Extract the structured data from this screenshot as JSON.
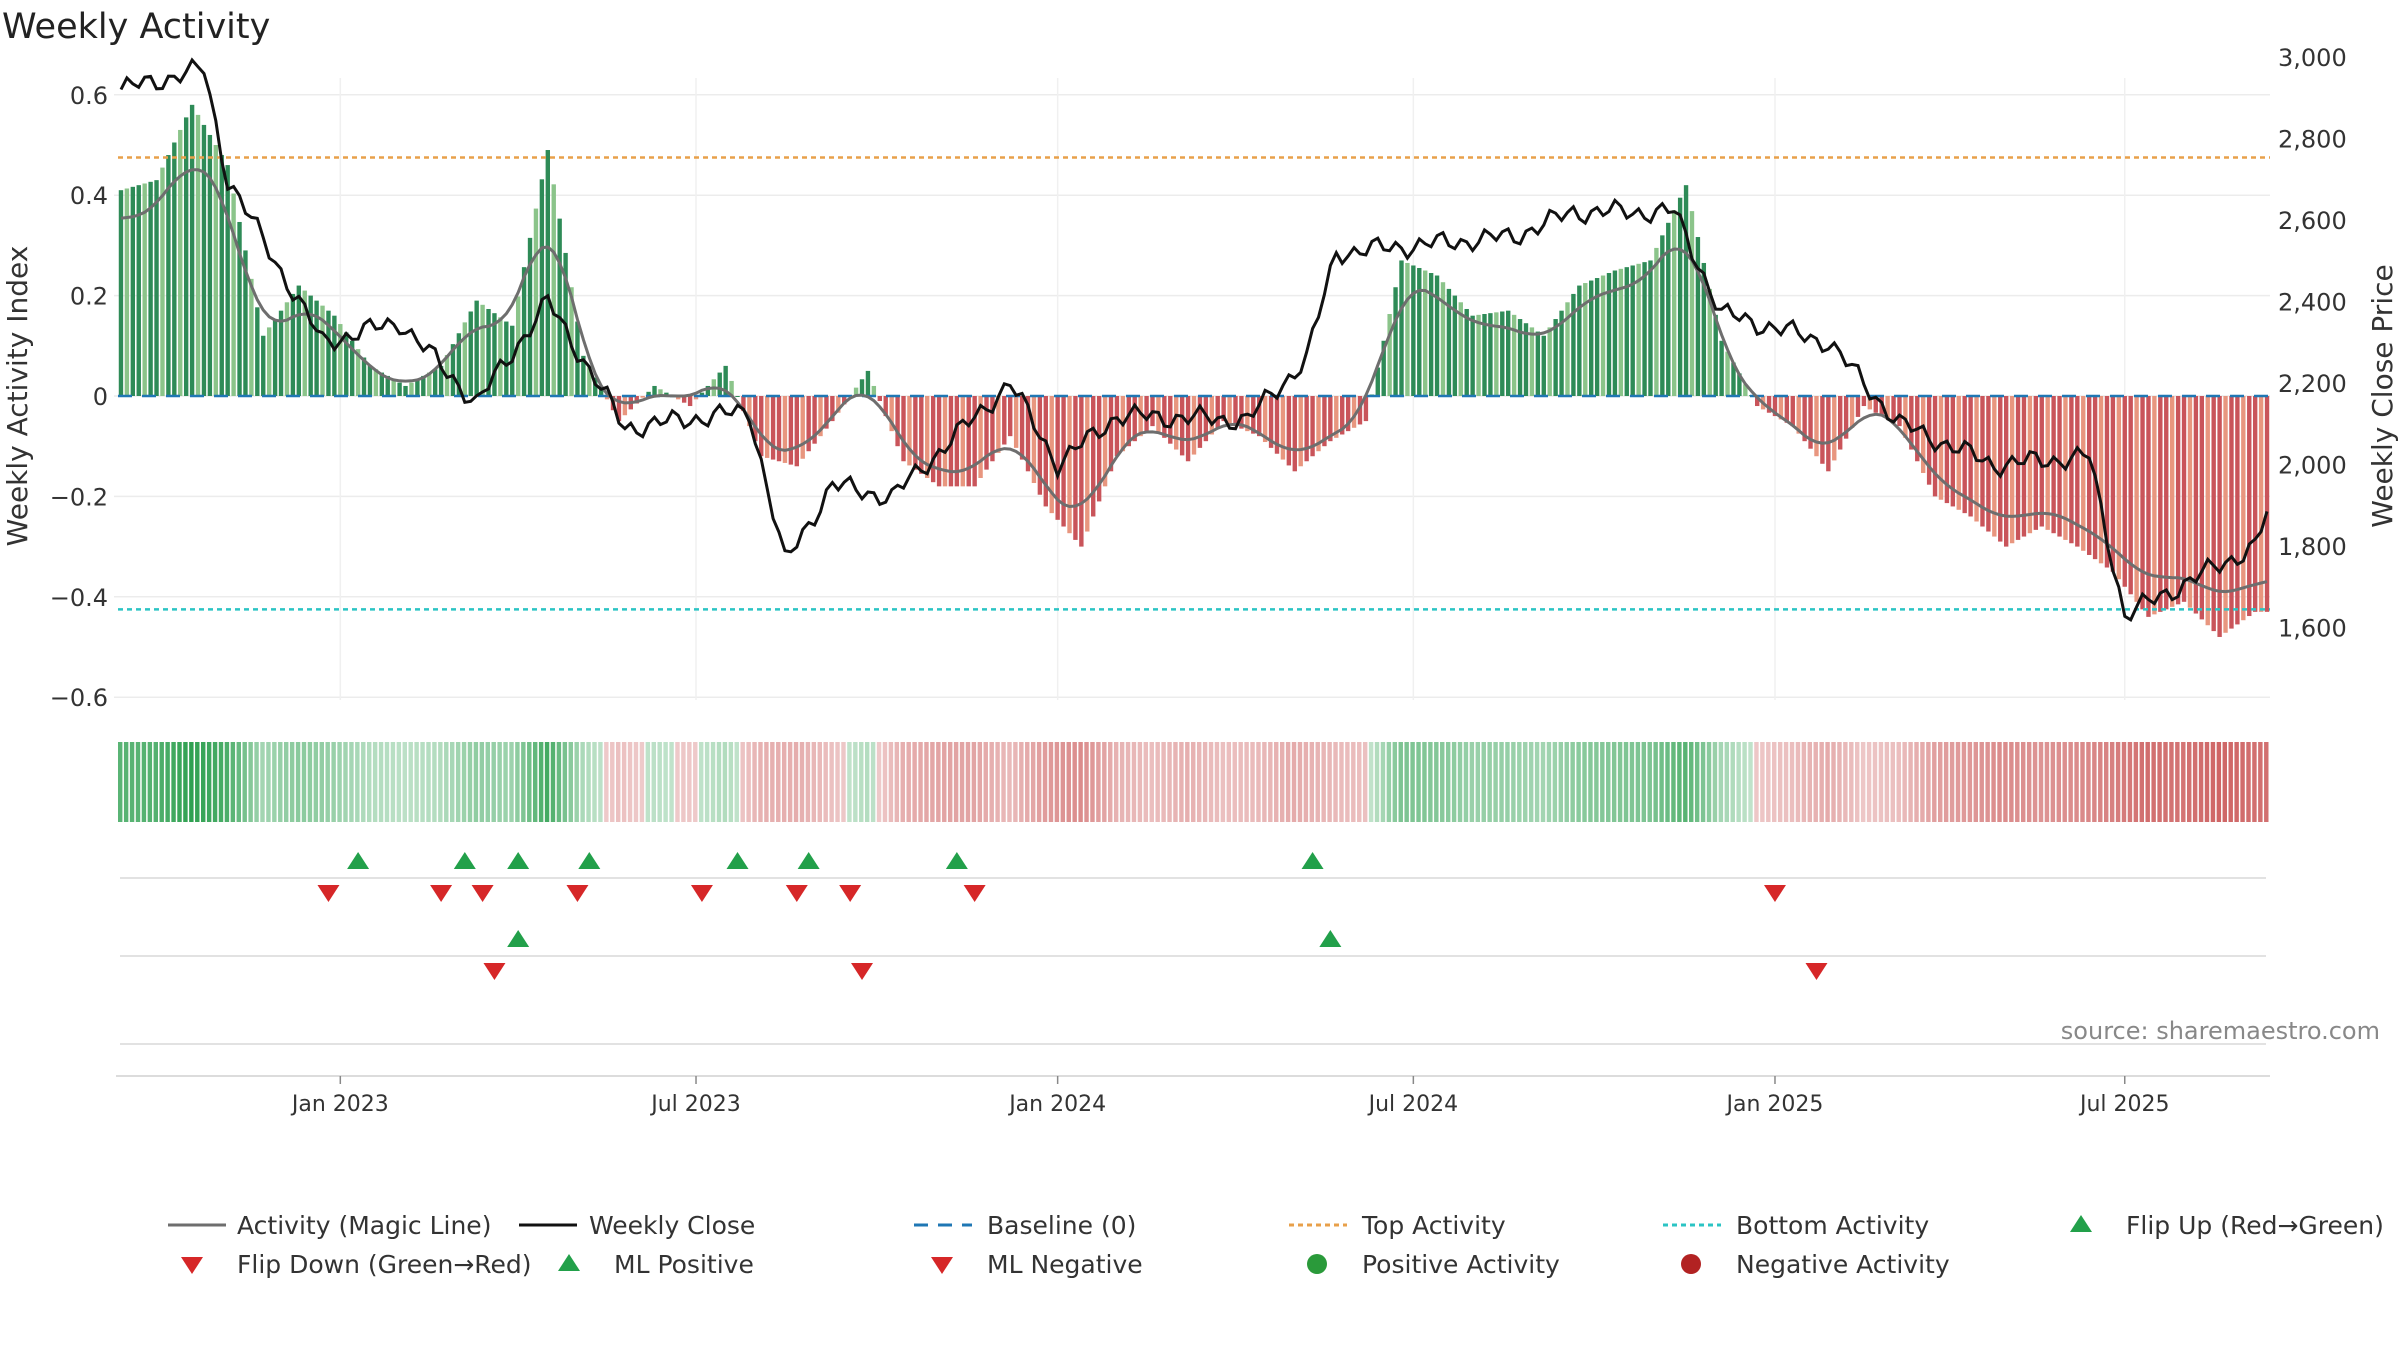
{
  "chart_data": {
    "type": "bar",
    "title": "Weekly Activity",
    "source": "source: sharemaestro.com",
    "ylabel_left": "Weekly Activity Index",
    "ylabel_right": "Weekly Close Price",
    "y_left_ticks": [
      0.6,
      0.4,
      0.2,
      0,
      -0.2,
      -0.4,
      -0.6
    ],
    "y_left_tick_labels": [
      "0.6",
      "0.4",
      "0.2",
      "0",
      "−0.2",
      "−0.4",
      "−0.6"
    ],
    "ylim_left": [
      -0.6,
      0.6
    ],
    "y_right_ticks": [
      3000,
      2800,
      2600,
      2400,
      2200,
      2000,
      1800,
      1600
    ],
    "y_right_tick_labels": [
      "3,000",
      "2,800",
      "2,600",
      "2,400",
      "2,200",
      "2,000",
      "1,800",
      "1,600"
    ],
    "ylim_right": [
      1600,
      3050
    ],
    "x_ticks": [
      {
        "label": "Jan 2023",
        "week": 37
      },
      {
        "label": "Jul 2023",
        "week": 97
      },
      {
        "label": "Jan 2024",
        "week": 158
      },
      {
        "label": "Jul 2024",
        "week": 218
      },
      {
        "label": "Jan 2025",
        "week": 279
      },
      {
        "label": "Jul 2025",
        "week": 338
      }
    ],
    "top_activity": 0.475,
    "bottom_activity": -0.425,
    "baseline": 0,
    "colors": {
      "pos_strong": "#2e8b57",
      "pos_light": "#8bc48a",
      "neg_strong": "#c9545a",
      "neg_light": "#e8967f",
      "magic_line": "#6e6e6e",
      "close_line": "#111111",
      "baseline": "#1f77b4",
      "top": "#e8a04a",
      "bottom": "#2bc4c4",
      "flip_up": "#22a04a",
      "flip_down": "#d62728",
      "pos_activity": "#2a9a3a",
      "neg_activity": "#b22222"
    },
    "series": [
      {
        "name": "Weekly Activity Index (bars)",
        "type": "bar",
        "x_weeks": "0-362",
        "values_sampled_every_4_weeks": [
          0.41,
          0.43,
          0.58,
          0.46,
          0.12,
          0.22,
          0.16,
          0.06,
          0.02,
          0.06,
          0.19,
          0.14,
          0.49,
          0.08,
          -0.05,
          0.02,
          -0.02,
          0.06,
          -0.12,
          -0.14,
          -0.05,
          0.05,
          -0.13,
          -0.18,
          -0.18,
          -0.08,
          -0.22,
          -0.3,
          -0.12,
          -0.06,
          -0.13,
          -0.05,
          -0.08,
          -0.15,
          -0.09,
          -0.05,
          0.27,
          0.24,
          0.16,
          0.17,
          0.12,
          0.22,
          0.25,
          0.27,
          0.42,
          0.11,
          -0.02,
          -0.06,
          -0.15,
          -0.02,
          -0.06,
          -0.2,
          -0.24,
          -0.3,
          -0.26,
          -0.3,
          -0.35,
          -0.44,
          -0.41,
          -0.48,
          -0.43
        ]
      },
      {
        "name": "Activity (Magic Line)",
        "type": "line"
      },
      {
        "name": "Weekly Close",
        "type": "line",
        "key_points": [
          [
            0,
            2920
          ],
          [
            14,
            2970
          ],
          [
            18,
            2700
          ],
          [
            34,
            2300
          ],
          [
            47,
            2350
          ],
          [
            60,
            2150
          ],
          [
            72,
            2400
          ],
          [
            85,
            2090
          ],
          [
            100,
            2120
          ],
          [
            106,
            2130
          ],
          [
            112,
            1760
          ],
          [
            120,
            1950
          ],
          [
            130,
            1920
          ],
          [
            150,
            2200
          ],
          [
            158,
            2000
          ],
          [
            168,
            2120
          ],
          [
            190,
            2110
          ],
          [
            200,
            2260
          ],
          [
            205,
            2520
          ],
          [
            220,
            2540
          ],
          [
            235,
            2560
          ],
          [
            245,
            2620
          ],
          [
            262,
            2620
          ],
          [
            270,
            2370
          ],
          [
            288,
            2300
          ],
          [
            300,
            2100
          ],
          [
            316,
            2000
          ],
          [
            332,
            2020
          ],
          [
            338,
            1630
          ],
          [
            360,
            1800
          ],
          [
            362,
            1880
          ]
        ]
      }
    ],
    "signal_rows": [
      {
        "name": "Flip row",
        "up_weeks": [
          40,
          58,
          67,
          79,
          104,
          116,
          141,
          201
        ],
        "down_weeks": [
          35,
          54,
          61,
          77,
          98,
          114,
          123,
          144,
          279
        ]
      },
      {
        "name": "ML row",
        "up_weeks": [
          67,
          204
        ],
        "down_weeks": [
          63,
          125,
          286
        ]
      },
      {
        "name": "Activity row",
        "up_weeks": [],
        "down_weeks": []
      }
    ],
    "legend": [
      {
        "key": "magic",
        "label": "Activity (Magic Line)"
      },
      {
        "key": "close",
        "label": "Weekly Close"
      },
      {
        "key": "baseline",
        "label": "Baseline (0)"
      },
      {
        "key": "top",
        "label": "Top Activity"
      },
      {
        "key": "bottom",
        "label": "Bottom Activity"
      },
      {
        "key": "flipup",
        "label": "Flip Up (Red→Green)"
      },
      {
        "key": "flipdown",
        "label": "Flip Down (Green→Red)"
      },
      {
        "key": "mlpos",
        "label": "ML Positive"
      },
      {
        "key": "mlneg",
        "label": "ML Negative"
      },
      {
        "key": "posact",
        "label": "Positive Activity"
      },
      {
        "key": "negact",
        "label": "Negative Activity"
      }
    ],
    "legend_placement": "bottom"
  }
}
